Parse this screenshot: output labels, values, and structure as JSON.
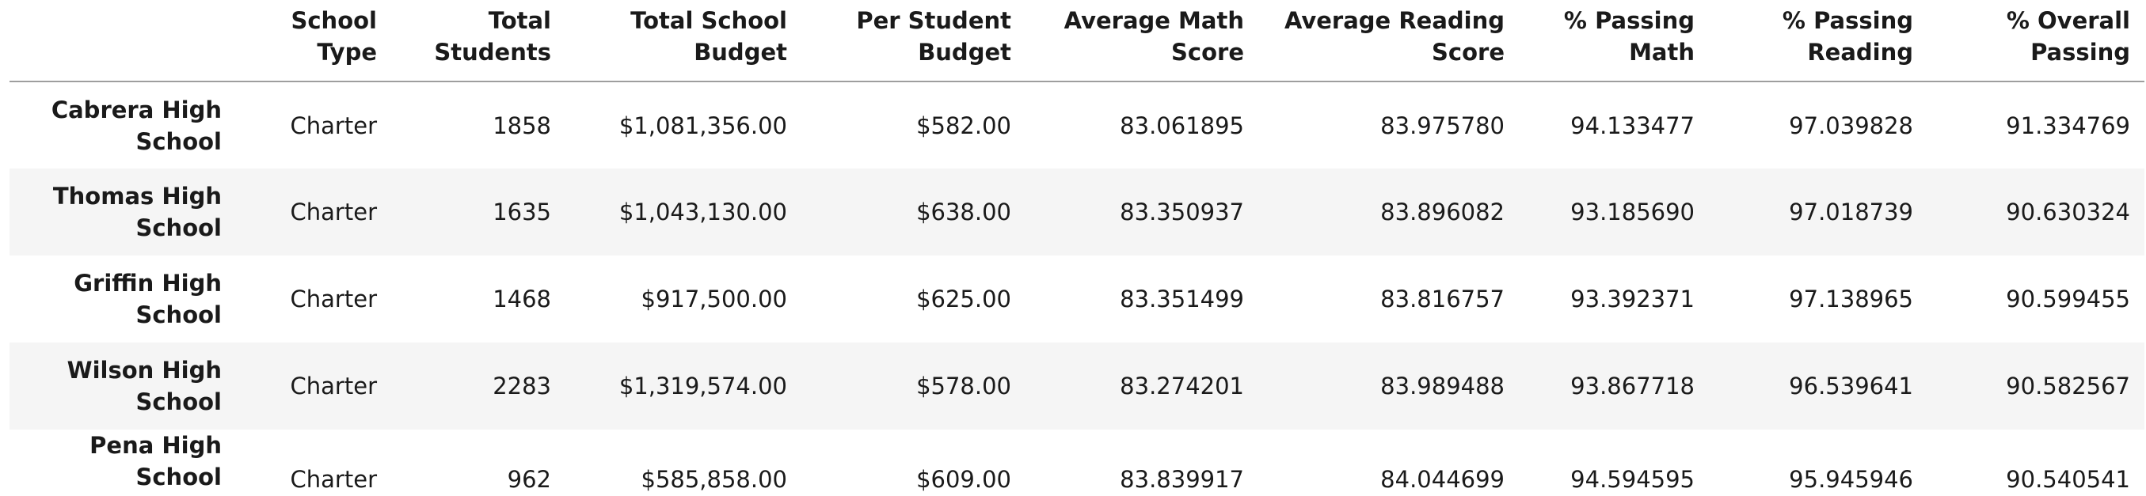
{
  "table": {
    "columns": [
      {
        "line1": "",
        "line2": ""
      },
      {
        "line1": "School",
        "line2": "Type"
      },
      {
        "line1": "Total",
        "line2": "Students"
      },
      {
        "line1": "Total School",
        "line2": "Budget"
      },
      {
        "line1": "Per Student",
        "line2": "Budget"
      },
      {
        "line1": "Average Math",
        "line2": "Score"
      },
      {
        "line1": "Average Reading",
        "line2": "Score"
      },
      {
        "line1": "% Passing",
        "line2": "Math"
      },
      {
        "line1": "% Passing",
        "line2": "Reading"
      },
      {
        "line1": "% Overall",
        "line2": "Passing"
      }
    ],
    "rows": [
      {
        "name_line1": "Cabrera High",
        "name_line2": "School",
        "cells": [
          "Charter",
          "1858",
          "$1,081,356.00",
          "$582.00",
          "83.061895",
          "83.975780",
          "94.133477",
          "97.039828",
          "91.334769"
        ]
      },
      {
        "name_line1": "Thomas High",
        "name_line2": "School",
        "cells": [
          "Charter",
          "1635",
          "$1,043,130.00",
          "$638.00",
          "83.350937",
          "83.896082",
          "93.185690",
          "97.018739",
          "90.630324"
        ]
      },
      {
        "name_line1": "Griffin High",
        "name_line2": "School",
        "cells": [
          "Charter",
          "1468",
          "$917,500.00",
          "$625.00",
          "83.351499",
          "83.816757",
          "93.392371",
          "97.138965",
          "90.599455"
        ]
      },
      {
        "name_line1": "Wilson High",
        "name_line2": "School",
        "cells": [
          "Charter",
          "2283",
          "$1,319,574.00",
          "$578.00",
          "83.274201",
          "83.989488",
          "93.867718",
          "96.539641",
          "90.582567"
        ]
      },
      {
        "name_line1": "Pena High School",
        "name_line2": "",
        "cells": [
          "Charter",
          "962",
          "$585,858.00",
          "$609.00",
          "83.839917",
          "84.044699",
          "94.594595",
          "95.945946",
          "90.540541"
        ]
      }
    ]
  }
}
